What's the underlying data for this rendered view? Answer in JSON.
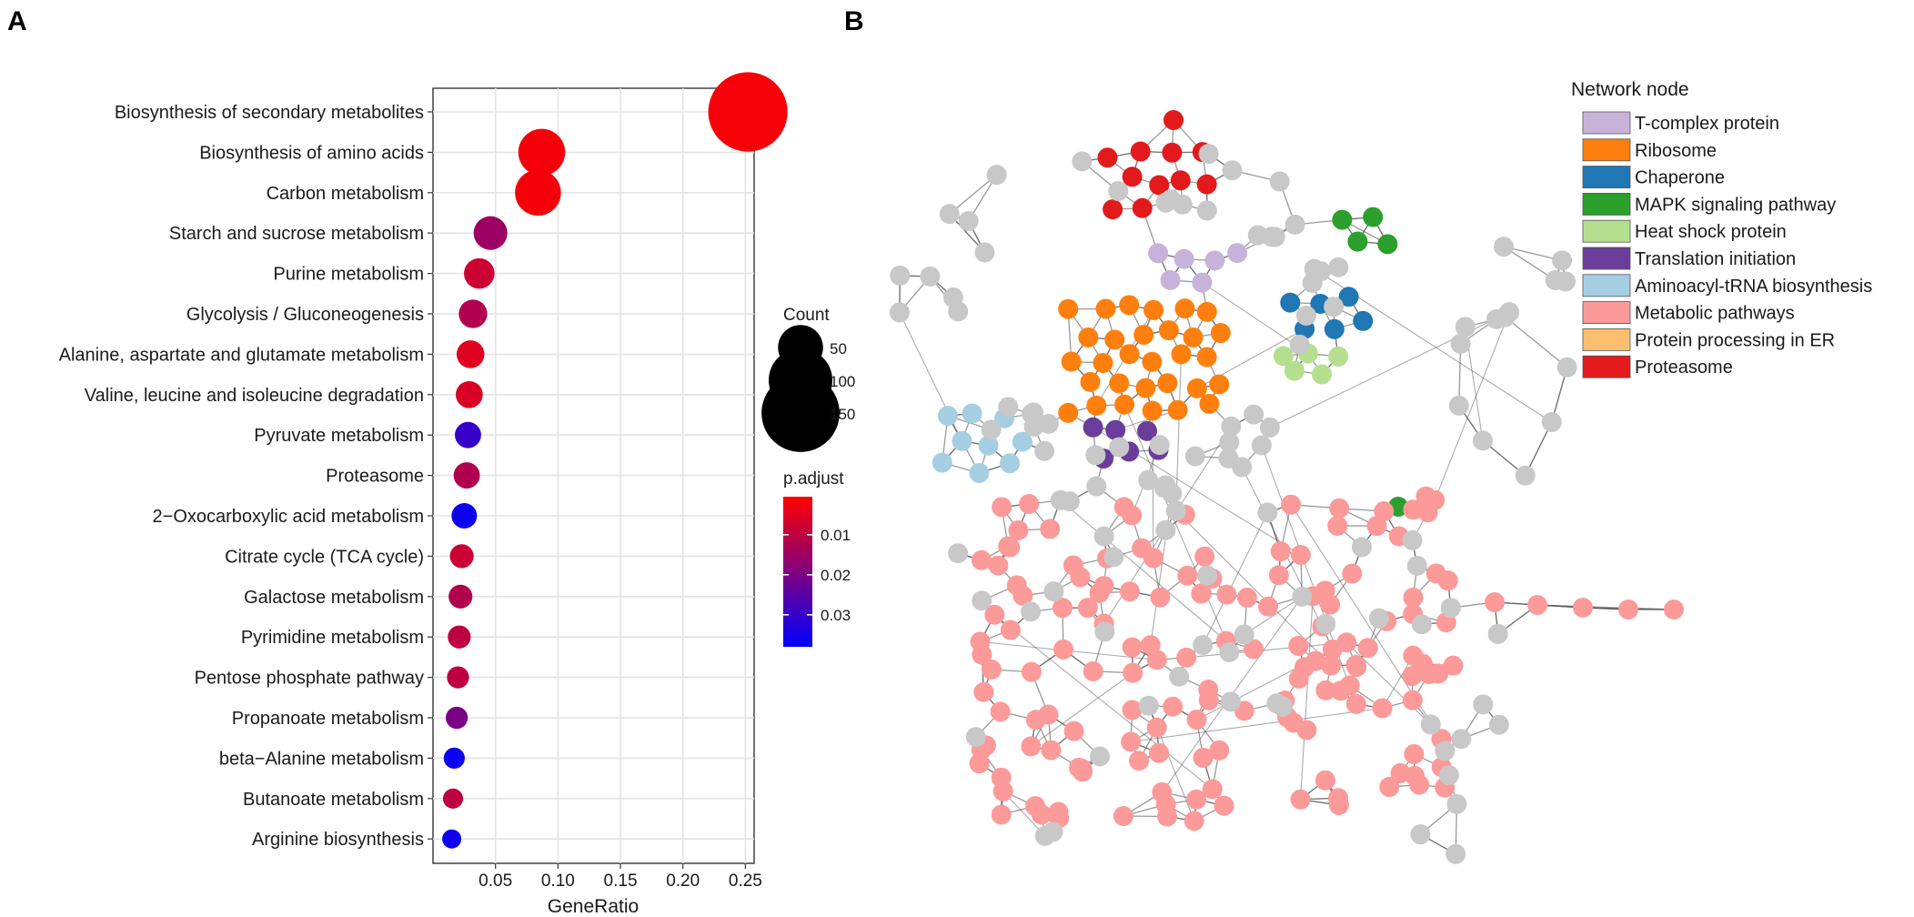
{
  "panel_labels": {
    "a": "A",
    "b": "B"
  },
  "chart_data": [
    {
      "type": "scatter",
      "subtype": "dot-plot",
      "xlabel": "GeneRatio",
      "ylabel": "",
      "xlim": [
        0.0,
        0.257
      ],
      "x_ticks": [
        0.05,
        0.1,
        0.15,
        0.2,
        0.25
      ],
      "x_tick_labels": [
        "0.05",
        "0.10",
        "0.15",
        "0.20",
        "0.25"
      ],
      "grid": true,
      "categories": [
        "Biosynthesis of secondary metabolites",
        "Biosynthesis of amino acids",
        "Carbon metabolism",
        "Starch and sucrose metabolism",
        "Purine metabolism",
        "Glycolysis / Gluconeogenesis",
        "Alanine, aspartate and glutamate metabolism",
        "Valine, leucine and isoleucine degradation",
        "Pyruvate metabolism",
        "Proteasome",
        "2−Oxocarboxylic acid metabolism",
        "Citrate cycle (TCA cycle)",
        "Galactose metabolism",
        "Pyrimidine metabolism",
        "Pentose phosphate pathway",
        "Propanoate metabolism",
        "beta−Alanine metabolism",
        "Butanoate metabolism",
        "Arginine biosynthesis"
      ],
      "gene_ratio": [
        0.252,
        0.087,
        0.084,
        0.046,
        0.037,
        0.032,
        0.03,
        0.029,
        0.028,
        0.027,
        0.025,
        0.023,
        0.022,
        0.021,
        0.02,
        0.019,
        0.017,
        0.016,
        0.015
      ],
      "count": [
        155,
        54,
        52,
        28,
        23,
        20,
        19,
        18,
        17,
        17,
        16,
        14,
        14,
        13,
        12,
        12,
        11,
        10,
        9
      ],
      "p_adjust": [
        0.0015,
        0.002,
        0.002,
        0.015,
        0.008,
        0.012,
        0.005,
        0.006,
        0.03,
        0.012,
        0.036,
        0.008,
        0.012,
        0.01,
        0.01,
        0.02,
        0.036,
        0.01,
        0.036
      ],
      "size_legend": {
        "title": "Count",
        "values": [
          50,
          100,
          150
        ],
        "labels": [
          "50",
          "100",
          "150"
        ]
      },
      "color_legend": {
        "title": "p.adjust",
        "range": [
          0.0005,
          0.038
        ],
        "ticks": [
          0.01,
          0.02,
          0.03
        ],
        "tick_labels": [
          "0.01",
          "0.02",
          "0.03"
        ],
        "low_color": "#ff0000",
        "high_color": "#0000ff"
      }
    },
    {
      "type": "network",
      "legend_title": "Network node",
      "categories": [
        {
          "name": "T-complex protein",
          "color": "#c7b3d9"
        },
        {
          "name": "Ribosome",
          "color": "#ff7f0e"
        },
        {
          "name": "Chaperone",
          "color": "#1f77b4"
        },
        {
          "name": "MAPK signaling pathway",
          "color": "#2ca02c"
        },
        {
          "name": "Heat shock protein",
          "color": "#b5df8f"
        },
        {
          "name": "Translation initiation",
          "color": "#6a3d9a"
        },
        {
          "name": "Aminoacyl-tRNA biosynthesis",
          "color": "#a6cee3"
        },
        {
          "name": "Metabolic pathways",
          "color": "#fb9a99"
        },
        {
          "name": "Protein processing in ER",
          "color": "#fdbf6f"
        },
        {
          "name": "Proteasome",
          "color": "#e31a1c"
        }
      ],
      "other_color": "#c8c8c8",
      "edge_color": "#555555"
    }
  ]
}
